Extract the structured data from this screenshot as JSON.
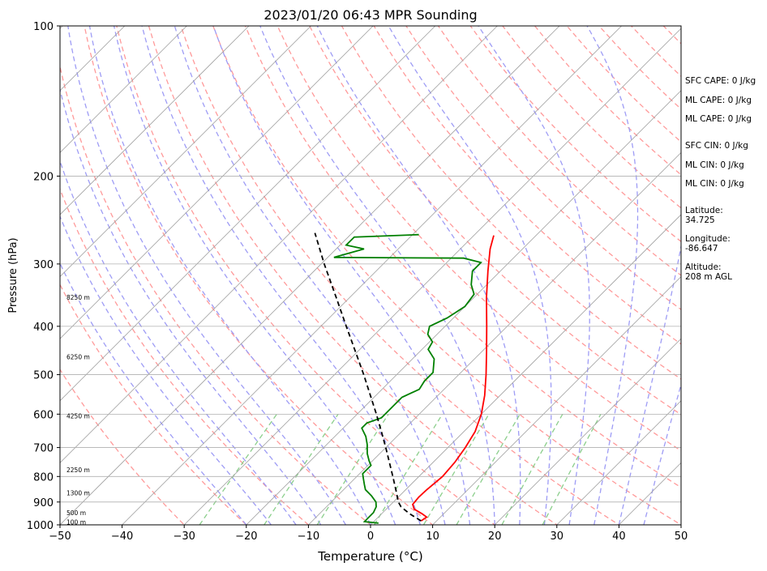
{
  "chart_data": {
    "type": "line",
    "subtype": "skew-t log-p",
    "title": "2023/01/20 06:43 MPR Sounding",
    "xlabel": "Temperature (°C)",
    "ylabel": "Pressure (hPa)",
    "xlim": [
      -50,
      50
    ],
    "ylim": [
      1000,
      100
    ],
    "y_scale": "log",
    "x_ticks": [
      -50,
      -40,
      -30,
      -20,
      -10,
      0,
      10,
      20,
      30,
      40,
      50
    ],
    "x_tick_labels": [
      "−50",
      "−40",
      "−30",
      "−20",
      "−10",
      "0",
      "10",
      "20",
      "30",
      "40",
      "50"
    ],
    "y_ticks": [
      1000,
      900,
      800,
      700,
      600,
      500,
      400,
      300,
      200,
      100
    ],
    "y_tick_labels": [
      "1000",
      "900",
      "800",
      "700",
      "600",
      "500",
      "400",
      "300",
      "200",
      "100"
    ],
    "grid": true,
    "series": [
      {
        "role": "temperature",
        "color": "#ff0000",
        "style": "solid",
        "points": [
          [
            982,
            7.5
          ],
          [
            965,
            7.8
          ],
          [
            950,
            6.5
          ],
          [
            930,
            4.5
          ],
          [
            910,
            3.5
          ],
          [
            880,
            3.3
          ],
          [
            850,
            3.4
          ],
          [
            800,
            3.8
          ],
          [
            750,
            3.5
          ],
          [
            700,
            2.8
          ],
          [
            650,
            1.8
          ],
          [
            600,
            0.0
          ],
          [
            550,
            -2.5
          ],
          [
            500,
            -5.6
          ],
          [
            450,
            -9.2
          ],
          [
            400,
            -13.3
          ],
          [
            350,
            -18.0
          ],
          [
            310,
            -22.0
          ],
          [
            280,
            -25.2
          ],
          [
            263,
            -26.8
          ]
        ]
      },
      {
        "role": "dewpoint",
        "color": "#008000",
        "style": "solid",
        "points": [
          [
            992,
            1.0
          ],
          [
            985,
            -1.5
          ],
          [
            965,
            -1.5
          ],
          [
            945,
            -1.5
          ],
          [
            920,
            -2.0
          ],
          [
            900,
            -2.8
          ],
          [
            875,
            -4.5
          ],
          [
            850,
            -6.5
          ],
          [
            830,
            -7.5
          ],
          [
            810,
            -8.5
          ],
          [
            790,
            -9.5
          ],
          [
            760,
            -9.5
          ],
          [
            745,
            -10.5
          ],
          [
            720,
            -12.0
          ],
          [
            690,
            -13.5
          ],
          [
            665,
            -15.0
          ],
          [
            640,
            -17.0
          ],
          [
            625,
            -17.0
          ],
          [
            610,
            -15.5
          ],
          [
            595,
            -15.5
          ],
          [
            575,
            -15.5
          ],
          [
            555,
            -15.5
          ],
          [
            535,
            -14.0
          ],
          [
            515,
            -14.5
          ],
          [
            495,
            -14.5
          ],
          [
            465,
            -16.5
          ],
          [
            445,
            -19.0
          ],
          [
            430,
            -19.5
          ],
          [
            415,
            -21.5
          ],
          [
            400,
            -22.5
          ],
          [
            385,
            -21.0
          ],
          [
            365,
            -20.0
          ],
          [
            345,
            -20.5
          ],
          [
            330,
            -22.5
          ],
          [
            310,
            -24.5
          ],
          [
            298,
            -24.5
          ],
          [
            292,
            -28.0
          ],
          [
            291,
            -49.0
          ],
          [
            280,
            -45.5
          ],
          [
            275,
            -49.0
          ],
          [
            265,
            -49.0
          ],
          [
            262,
            -39.0
          ]
        ]
      },
      {
        "role": "parcel",
        "color": "#000000",
        "style": "dashed",
        "points": [
          [
            982,
            7.5
          ],
          [
            950,
            4.5
          ],
          [
            920,
            2.0
          ],
          [
            900,
            0.8
          ],
          [
            850,
            -1.6
          ],
          [
            800,
            -4.2
          ],
          [
            750,
            -7.0
          ],
          [
            700,
            -10.0
          ],
          [
            650,
            -13.3
          ],
          [
            600,
            -16.9
          ],
          [
            550,
            -20.9
          ],
          [
            500,
            -25.3
          ],
          [
            450,
            -30.3
          ],
          [
            400,
            -35.9
          ],
          [
            350,
            -42.2
          ],
          [
            300,
            -49.5
          ],
          [
            260,
            -56.0
          ]
        ]
      }
    ],
    "height_labels": [
      {
        "text": "100 m",
        "p": 987
      },
      {
        "text": "500 m",
        "p": 945
      },
      {
        "text": "1300 m",
        "p": 863
      },
      {
        "text": "2250 m",
        "p": 775
      },
      {
        "text": "4250 m",
        "p": 605
      },
      {
        "text": "6250 m",
        "p": 460
      },
      {
        "text": "8250 m",
        "p": 350
      }
    ],
    "annotations": [
      "SFC CAPE: 0 J/kg",
      "ML CAPE: 0 J/kg",
      "ML CAPE: 0 J/kg",
      "SFC CIN: 0 J/kg",
      "ML CIN: 0 J/kg",
      "ML CIN: 0 J/kg",
      "Latitude:",
      "34.725",
      "Longitude:",
      "-86.647",
      "Altitude:",
      "208 m AGL"
    ],
    "colors": {
      "isotherms": "#a0a0a0",
      "dry_adiabats": "#ff9a9a",
      "moist_adiabats": "#9e9cf5",
      "mixing_ratio": "#8ccf8c"
    }
  }
}
